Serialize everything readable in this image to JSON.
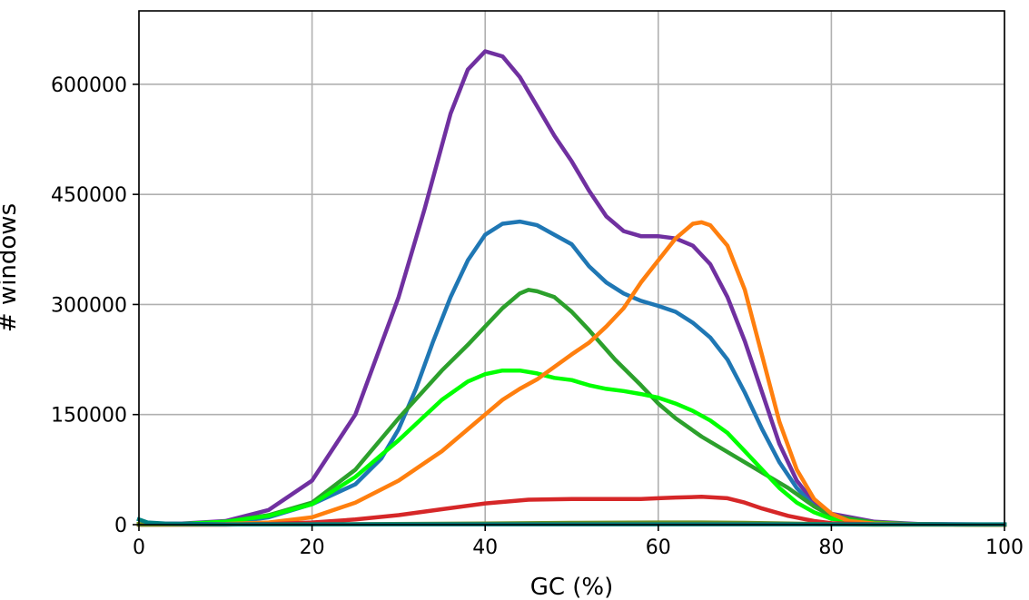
{
  "chart_data": {
    "type": "line",
    "xlabel": "GC (%)",
    "ylabel": "# windows",
    "xlim": [
      0,
      100
    ],
    "ylim": [
      0,
      700000
    ],
    "xticks": [
      0,
      20,
      40,
      60,
      80,
      100
    ],
    "yticks": [
      0,
      150000,
      300000,
      450000,
      600000
    ],
    "xtick_labels": [
      "0",
      "20",
      "40",
      "60",
      "80",
      "100"
    ],
    "ytick_labels": [
      "0",
      "150000",
      "300000",
      "450000",
      "600000"
    ],
    "grid": true,
    "series": [
      {
        "color": "#7030a0",
        "points": [
          [
            0,
            1000
          ],
          [
            5,
            1500
          ],
          [
            10,
            5000
          ],
          [
            15,
            20000
          ],
          [
            20,
            60000
          ],
          [
            25,
            150000
          ],
          [
            30,
            310000
          ],
          [
            33,
            430000
          ],
          [
            36,
            560000
          ],
          [
            38,
            620000
          ],
          [
            40,
            645000
          ],
          [
            42,
            638000
          ],
          [
            44,
            610000
          ],
          [
            46,
            570000
          ],
          [
            48,
            530000
          ],
          [
            50,
            495000
          ],
          [
            52,
            455000
          ],
          [
            54,
            420000
          ],
          [
            56,
            400000
          ],
          [
            58,
            393000
          ],
          [
            60,
            393000
          ],
          [
            62,
            390000
          ],
          [
            64,
            380000
          ],
          [
            66,
            355000
          ],
          [
            68,
            310000
          ],
          [
            70,
            250000
          ],
          [
            72,
            180000
          ],
          [
            74,
            110000
          ],
          [
            76,
            60000
          ],
          [
            78,
            30000
          ],
          [
            80,
            15000
          ],
          [
            85,
            4000
          ],
          [
            90,
            1000
          ],
          [
            100,
            0
          ]
        ]
      },
      {
        "color": "#1f77b4",
        "points": [
          [
            0,
            1000
          ],
          [
            5,
            1000
          ],
          [
            10,
            2000
          ],
          [
            15,
            10000
          ],
          [
            20,
            28000
          ],
          [
            25,
            55000
          ],
          [
            28,
            90000
          ],
          [
            30,
            130000
          ],
          [
            32,
            185000
          ],
          [
            34,
            250000
          ],
          [
            36,
            310000
          ],
          [
            38,
            360000
          ],
          [
            40,
            395000
          ],
          [
            42,
            410000
          ],
          [
            44,
            413000
          ],
          [
            46,
            408000
          ],
          [
            48,
            395000
          ],
          [
            50,
            382000
          ],
          [
            52,
            352000
          ],
          [
            54,
            330000
          ],
          [
            56,
            315000
          ],
          [
            58,
            305000
          ],
          [
            60,
            298000
          ],
          [
            62,
            290000
          ],
          [
            64,
            275000
          ],
          [
            66,
            255000
          ],
          [
            68,
            225000
          ],
          [
            70,
            180000
          ],
          [
            72,
            130000
          ],
          [
            74,
            85000
          ],
          [
            76,
            50000
          ],
          [
            78,
            25000
          ],
          [
            80,
            12000
          ],
          [
            85,
            2000
          ],
          [
            90,
            500
          ],
          [
            100,
            0
          ]
        ]
      },
      {
        "color": "#2ca02c",
        "points": [
          [
            0,
            1000
          ],
          [
            5,
            1000
          ],
          [
            10,
            4000
          ],
          [
            15,
            13000
          ],
          [
            20,
            30000
          ],
          [
            25,
            75000
          ],
          [
            30,
            145000
          ],
          [
            35,
            210000
          ],
          [
            38,
            245000
          ],
          [
            40,
            270000
          ],
          [
            42,
            295000
          ],
          [
            44,
            315000
          ],
          [
            45,
            320000
          ],
          [
            46,
            318000
          ],
          [
            48,
            310000
          ],
          [
            50,
            290000
          ],
          [
            52,
            265000
          ],
          [
            55,
            225000
          ],
          [
            58,
            190000
          ],
          [
            60,
            165000
          ],
          [
            62,
            145000
          ],
          [
            65,
            120000
          ],
          [
            70,
            85000
          ],
          [
            75,
            50000
          ],
          [
            78,
            25000
          ],
          [
            80,
            12000
          ],
          [
            85,
            3000
          ],
          [
            90,
            500
          ],
          [
            100,
            0
          ]
        ]
      },
      {
        "color": "#00ff00",
        "points": [
          [
            0,
            1000
          ],
          [
            5,
            1000
          ],
          [
            10,
            4000
          ],
          [
            15,
            12000
          ],
          [
            20,
            28000
          ],
          [
            25,
            65000
          ],
          [
            30,
            115000
          ],
          [
            35,
            170000
          ],
          [
            38,
            195000
          ],
          [
            40,
            205000
          ],
          [
            42,
            210000
          ],
          [
            44,
            210000
          ],
          [
            46,
            206000
          ],
          [
            48,
            200000
          ],
          [
            50,
            197000
          ],
          [
            52,
            190000
          ],
          [
            54,
            185000
          ],
          [
            56,
            182000
          ],
          [
            58,
            178000
          ],
          [
            60,
            173000
          ],
          [
            62,
            165000
          ],
          [
            64,
            155000
          ],
          [
            66,
            142000
          ],
          [
            68,
            125000
          ],
          [
            70,
            100000
          ],
          [
            72,
            75000
          ],
          [
            74,
            50000
          ],
          [
            76,
            30000
          ],
          [
            78,
            17000
          ],
          [
            80,
            8000
          ],
          [
            85,
            2000
          ],
          [
            90,
            500
          ],
          [
            100,
            0
          ]
        ]
      },
      {
        "color": "#ff7f0e",
        "points": [
          [
            0,
            500
          ],
          [
            5,
            500
          ],
          [
            10,
            1000
          ],
          [
            15,
            3000
          ],
          [
            20,
            10000
          ],
          [
            25,
            30000
          ],
          [
            30,
            60000
          ],
          [
            35,
            100000
          ],
          [
            38,
            130000
          ],
          [
            40,
            150000
          ],
          [
            42,
            170000
          ],
          [
            44,
            185000
          ],
          [
            46,
            198000
          ],
          [
            48,
            215000
          ],
          [
            50,
            232000
          ],
          [
            52,
            248000
          ],
          [
            54,
            270000
          ],
          [
            56,
            295000
          ],
          [
            58,
            330000
          ],
          [
            60,
            360000
          ],
          [
            62,
            390000
          ],
          [
            64,
            410000
          ],
          [
            65,
            412000
          ],
          [
            66,
            408000
          ],
          [
            68,
            380000
          ],
          [
            70,
            320000
          ],
          [
            72,
            230000
          ],
          [
            74,
            140000
          ],
          [
            76,
            75000
          ],
          [
            78,
            35000
          ],
          [
            80,
            15000
          ],
          [
            82,
            5000
          ],
          [
            85,
            1500
          ],
          [
            90,
            500
          ],
          [
            100,
            0
          ]
        ]
      },
      {
        "color": "#d62728",
        "points": [
          [
            0,
            0
          ],
          [
            10,
            0
          ],
          [
            15,
            1000
          ],
          [
            20,
            3000
          ],
          [
            25,
            7000
          ],
          [
            30,
            13000
          ],
          [
            35,
            21000
          ],
          [
            40,
            29000
          ],
          [
            45,
            34000
          ],
          [
            50,
            35000
          ],
          [
            55,
            35000
          ],
          [
            58,
            35000
          ],
          [
            60,
            36000
          ],
          [
            62,
            37000
          ],
          [
            65,
            38000
          ],
          [
            68,
            36000
          ],
          [
            70,
            30000
          ],
          [
            72,
            22000
          ],
          [
            75,
            12000
          ],
          [
            78,
            5000
          ],
          [
            80,
            2000
          ],
          [
            85,
            500
          ],
          [
            100,
            0
          ]
        ]
      },
      {
        "color": "#6b8e23",
        "points": [
          [
            0,
            0
          ],
          [
            20,
            500
          ],
          [
            40,
            1500
          ],
          [
            50,
            2500
          ],
          [
            60,
            3000
          ],
          [
            65,
            3000
          ],
          [
            70,
            2500
          ],
          [
            75,
            1500
          ],
          [
            80,
            500
          ],
          [
            85,
            0
          ],
          [
            100,
            0
          ]
        ]
      },
      {
        "color": "#008080",
        "points": [
          [
            0,
            7000
          ],
          [
            1,
            3000
          ],
          [
            3,
            1500
          ],
          [
            10,
            500
          ],
          [
            30,
            500
          ],
          [
            60,
            500
          ],
          [
            90,
            500
          ],
          [
            100,
            500
          ]
        ]
      }
    ]
  }
}
